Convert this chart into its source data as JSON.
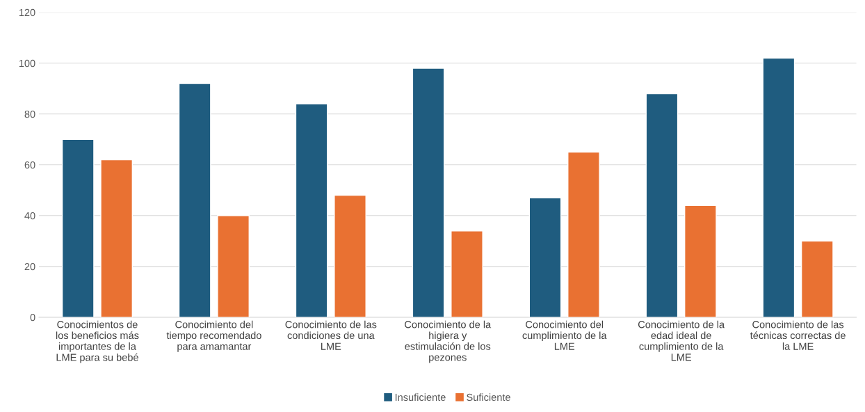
{
  "chart_data": {
    "type": "bar",
    "categories": [
      "Conocimientos de\nlos beneficios más\nimportantes de la\nLME para su bebé",
      "Conocimiento del\ntiempo recomendado\npara amamantar",
      "Conocimiento de las\ncondiciones de una\nLME",
      "Conocimiento de la\nhigiera y\nestimulación de los\npezones",
      "Conocimiento del\ncumplimiento de la\nLME",
      "Conocimiento de la\nedad ideal de\ncumplimiento de la\nLME",
      "Conocimiento de las\ntécnicas correctas de\nla LME"
    ],
    "series": [
      {
        "name": "Insuficiente",
        "color": "#1f5c7f",
        "values": [
          70,
          92,
          84,
          98,
          47,
          88,
          102
        ]
      },
      {
        "name": "Suficiente",
        "color": "#e97132",
        "values": [
          62,
          40,
          48,
          34,
          65,
          44,
          30
        ]
      }
    ],
    "ylim": [
      0,
      120
    ],
    "yticks": [
      0,
      20,
      40,
      60,
      80,
      100,
      120
    ],
    "grid": "y",
    "legend": "bottom"
  }
}
